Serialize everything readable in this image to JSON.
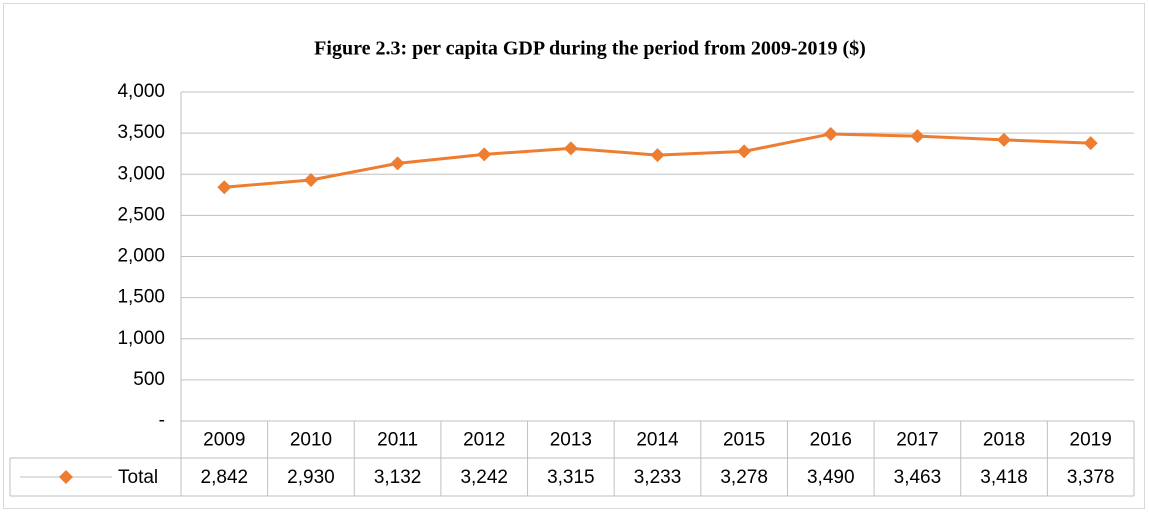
{
  "chart_data": {
    "type": "line",
    "title": "Figure 2.3: per capita GDP during the period from 2009-2019 ($)",
    "categories": [
      "2009",
      "2010",
      "2011",
      "2012",
      "2013",
      "2014",
      "2015",
      "2016",
      "2017",
      "2018",
      "2019"
    ],
    "series": [
      {
        "name": "Total",
        "color": "#ed7d31",
        "values": [
          2842,
          2930,
          3132,
          3242,
          3315,
          3233,
          3278,
          3490,
          3463,
          3418,
          3378
        ],
        "value_labels": [
          "2,842",
          "2,930",
          "3,132",
          "3,242",
          "3,315",
          "3,233",
          "3,278",
          "3,490",
          "3,463",
          "3,418",
          "3,378"
        ]
      }
    ],
    "ylim": [
      0,
      4000
    ],
    "yticks": [
      {
        "value": 0,
        "label": "-"
      },
      500,
      {
        "value": 1000,
        "label": "1,000"
      },
      {
        "value": 1500,
        "label": "1,500"
      },
      {
        "value": 2000,
        "label": "2,000"
      },
      {
        "value": 2500,
        "label": "2,500"
      },
      {
        "value": 3000,
        "label": "3,000"
      },
      {
        "value": 3500,
        "label": "3,500"
      },
      {
        "value": 4000,
        "label": "4,000"
      }
    ],
    "grid": true
  }
}
